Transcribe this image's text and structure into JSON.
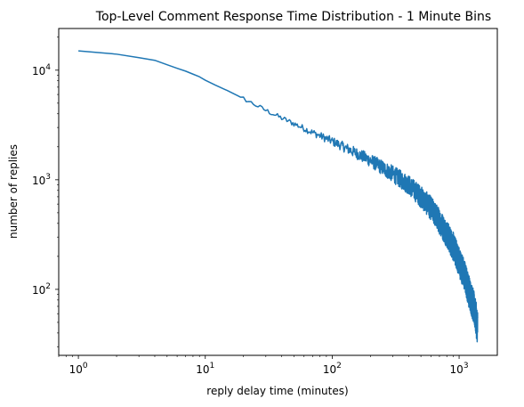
{
  "chart_data": {
    "type": "line",
    "title": "Top-Level Comment Response Time Distribution - 1 Minute Bins",
    "xlabel": "reply delay time (minutes)",
    "ylabel": "number of replies",
    "xscale": "log",
    "yscale": "log",
    "xlim": [
      0.7,
      2000
    ],
    "ylim": [
      25,
      24000
    ],
    "grid": false,
    "legend": "none",
    "line_color": "#1f77b4",
    "x_ticks": [
      {
        "value": 1,
        "base": "10",
        "exp": "0"
      },
      {
        "value": 10,
        "base": "10",
        "exp": "1"
      },
      {
        "value": 100,
        "base": "10",
        "exp": "2"
      },
      {
        "value": 1000,
        "base": "10",
        "exp": "3"
      }
    ],
    "y_ticks": [
      {
        "value": 100,
        "base": "10",
        "exp": "2"
      },
      {
        "value": 1000,
        "base": "10",
        "exp": "3"
      },
      {
        "value": 10000,
        "base": "10",
        "exp": "4"
      }
    ],
    "series": [
      {
        "x": [
          1,
          1.5,
          2,
          3,
          4,
          5,
          6,
          7,
          8,
          9,
          10,
          12,
          15,
          20,
          25,
          30,
          40,
          50,
          70,
          100,
          150,
          200,
          300,
          400,
          500,
          600,
          700,
          800,
          900,
          1000,
          1100,
          1200,
          1300,
          1400
        ],
        "y": [
          15000,
          14500,
          14000,
          13000,
          12300,
          11200,
          10400,
          9800,
          9200,
          8700,
          8100,
          7300,
          6500,
          5500,
          4800,
          4300,
          3650,
          3250,
          2700,
          2250,
          1780,
          1500,
          1130,
          900,
          700,
          550,
          420,
          320,
          245,
          180,
          135,
          95,
          70,
          45
        ]
      }
    ]
  }
}
